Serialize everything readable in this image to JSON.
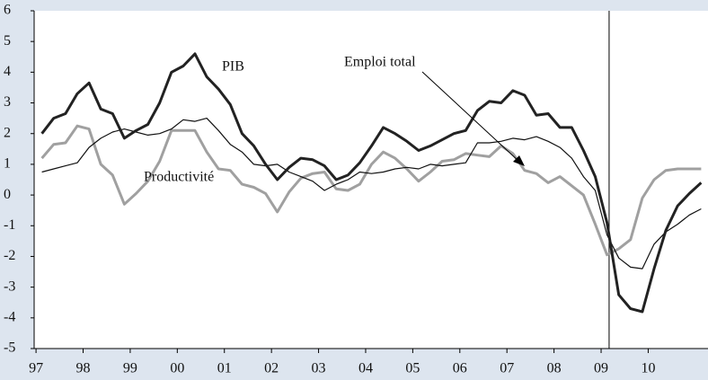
{
  "chart_data": {
    "type": "line",
    "x": [
      1997.125,
      1997.375,
      1997.625,
      1997.875,
      1998.125,
      1998.375,
      1998.625,
      1998.875,
      1999.125,
      1999.375,
      1999.625,
      1999.875,
      2000.125,
      2000.375,
      2000.625,
      2000.875,
      2001.125,
      2001.375,
      2001.625,
      2001.875,
      2002.125,
      2002.375,
      2002.625,
      2002.875,
      2003.125,
      2003.375,
      2003.625,
      2003.875,
      2004.125,
      2004.375,
      2004.625,
      2004.875,
      2005.125,
      2005.375,
      2005.625,
      2005.875,
      2006.125,
      2006.375,
      2006.625,
      2006.875,
      2007.125,
      2007.375,
      2007.625,
      2007.875,
      2008.125,
      2008.375,
      2008.625,
      2008.875,
      2009.125,
      2009.375,
      2009.625,
      2009.875,
      2010.125,
      2010.375,
      2010.625,
      2010.875,
      2011.125
    ],
    "series": [
      {
        "name": "PIB",
        "color": "#222222",
        "width": 3,
        "values": [
          2.0,
          2.5,
          2.65,
          3.3,
          3.65,
          2.8,
          2.65,
          1.85,
          2.1,
          2.3,
          3.0,
          4.0,
          4.2,
          4.6,
          3.85,
          3.45,
          2.95,
          2.0,
          1.6,
          1.0,
          0.5,
          0.9,
          1.2,
          1.15,
          0.95,
          0.5,
          0.65,
          1.05,
          1.6,
          2.2,
          2.0,
          1.75,
          1.45,
          1.6,
          1.8,
          2.0,
          2.1,
          2.75,
          3.05,
          3.0,
          3.4,
          3.25,
          2.6,
          2.65,
          2.2,
          2.2,
          1.45,
          0.6,
          -0.9,
          -3.25,
          -3.7,
          -3.8,
          -2.4,
          -1.15,
          -0.35,
          0.05,
          0.4
        ]
      },
      {
        "name": "Emploi total",
        "color": "#111111",
        "width": 1.2,
        "values": [
          0.75,
          0.85,
          0.95,
          1.05,
          1.55,
          1.85,
          2.05,
          2.15,
          2.05,
          1.95,
          2.0,
          2.15,
          2.45,
          2.4,
          2.5,
          2.1,
          1.65,
          1.4,
          1.0,
          0.95,
          1.0,
          0.75,
          0.6,
          0.45,
          0.15,
          0.35,
          0.5,
          0.75,
          0.7,
          0.75,
          0.85,
          0.9,
          0.85,
          1.0,
          0.95,
          1.0,
          1.05,
          1.7,
          1.7,
          1.75,
          1.85,
          1.8,
          1.9,
          1.75,
          1.55,
          1.2,
          0.6,
          0.15,
          -1.3,
          -2.05,
          -2.35,
          -2.4,
          -1.6,
          -1.2,
          -0.95,
          -0.65,
          -0.45
        ]
      },
      {
        "name": "Productivité",
        "color": "#a0a0a0",
        "width": 3,
        "values": [
          1.2,
          1.65,
          1.7,
          2.25,
          2.15,
          1.0,
          0.65,
          -0.3,
          0.05,
          0.45,
          1.1,
          2.1,
          2.1,
          2.1,
          1.4,
          0.85,
          0.8,
          0.35,
          0.25,
          0.05,
          -0.55,
          0.1,
          0.55,
          0.7,
          0.75,
          0.2,
          0.15,
          0.35,
          1.0,
          1.4,
          1.2,
          0.85,
          0.45,
          0.75,
          1.1,
          1.15,
          1.35,
          1.3,
          1.25,
          1.6,
          1.35,
          0.8,
          0.7,
          0.4,
          0.6,
          0.3,
          0.0,
          -0.95,
          -1.95,
          -1.75,
          -1.45,
          -0.1,
          0.5,
          0.8,
          0.85,
          0.85,
          0.85
        ]
      }
    ],
    "xlim": [
      1996.96,
      2011.27
    ],
    "xticks": [
      {
        "value": 1997,
        "label": "97"
      },
      {
        "value": 1998,
        "label": "98"
      },
      {
        "value": 1999,
        "label": "99"
      },
      {
        "value": 2000,
        "label": "00"
      },
      {
        "value": 2001,
        "label": "01"
      },
      {
        "value": 2002,
        "label": "02"
      },
      {
        "value": 2003,
        "label": "03"
      },
      {
        "value": 2004,
        "label": "04"
      },
      {
        "value": 2005,
        "label": "05"
      },
      {
        "value": 2006,
        "label": "06"
      },
      {
        "value": 2007,
        "label": "07"
      },
      {
        "value": 2008,
        "label": "08"
      },
      {
        "value": 2009,
        "label": "09"
      },
      {
        "value": 2010,
        "label": "10"
      }
    ],
    "ylim": [
      -5,
      6
    ],
    "yticks": [
      -5,
      -4,
      -3,
      -2,
      -1,
      0,
      1,
      2,
      3,
      4,
      5,
      6
    ],
    "vline": 2009.17,
    "grid": false
  }
}
